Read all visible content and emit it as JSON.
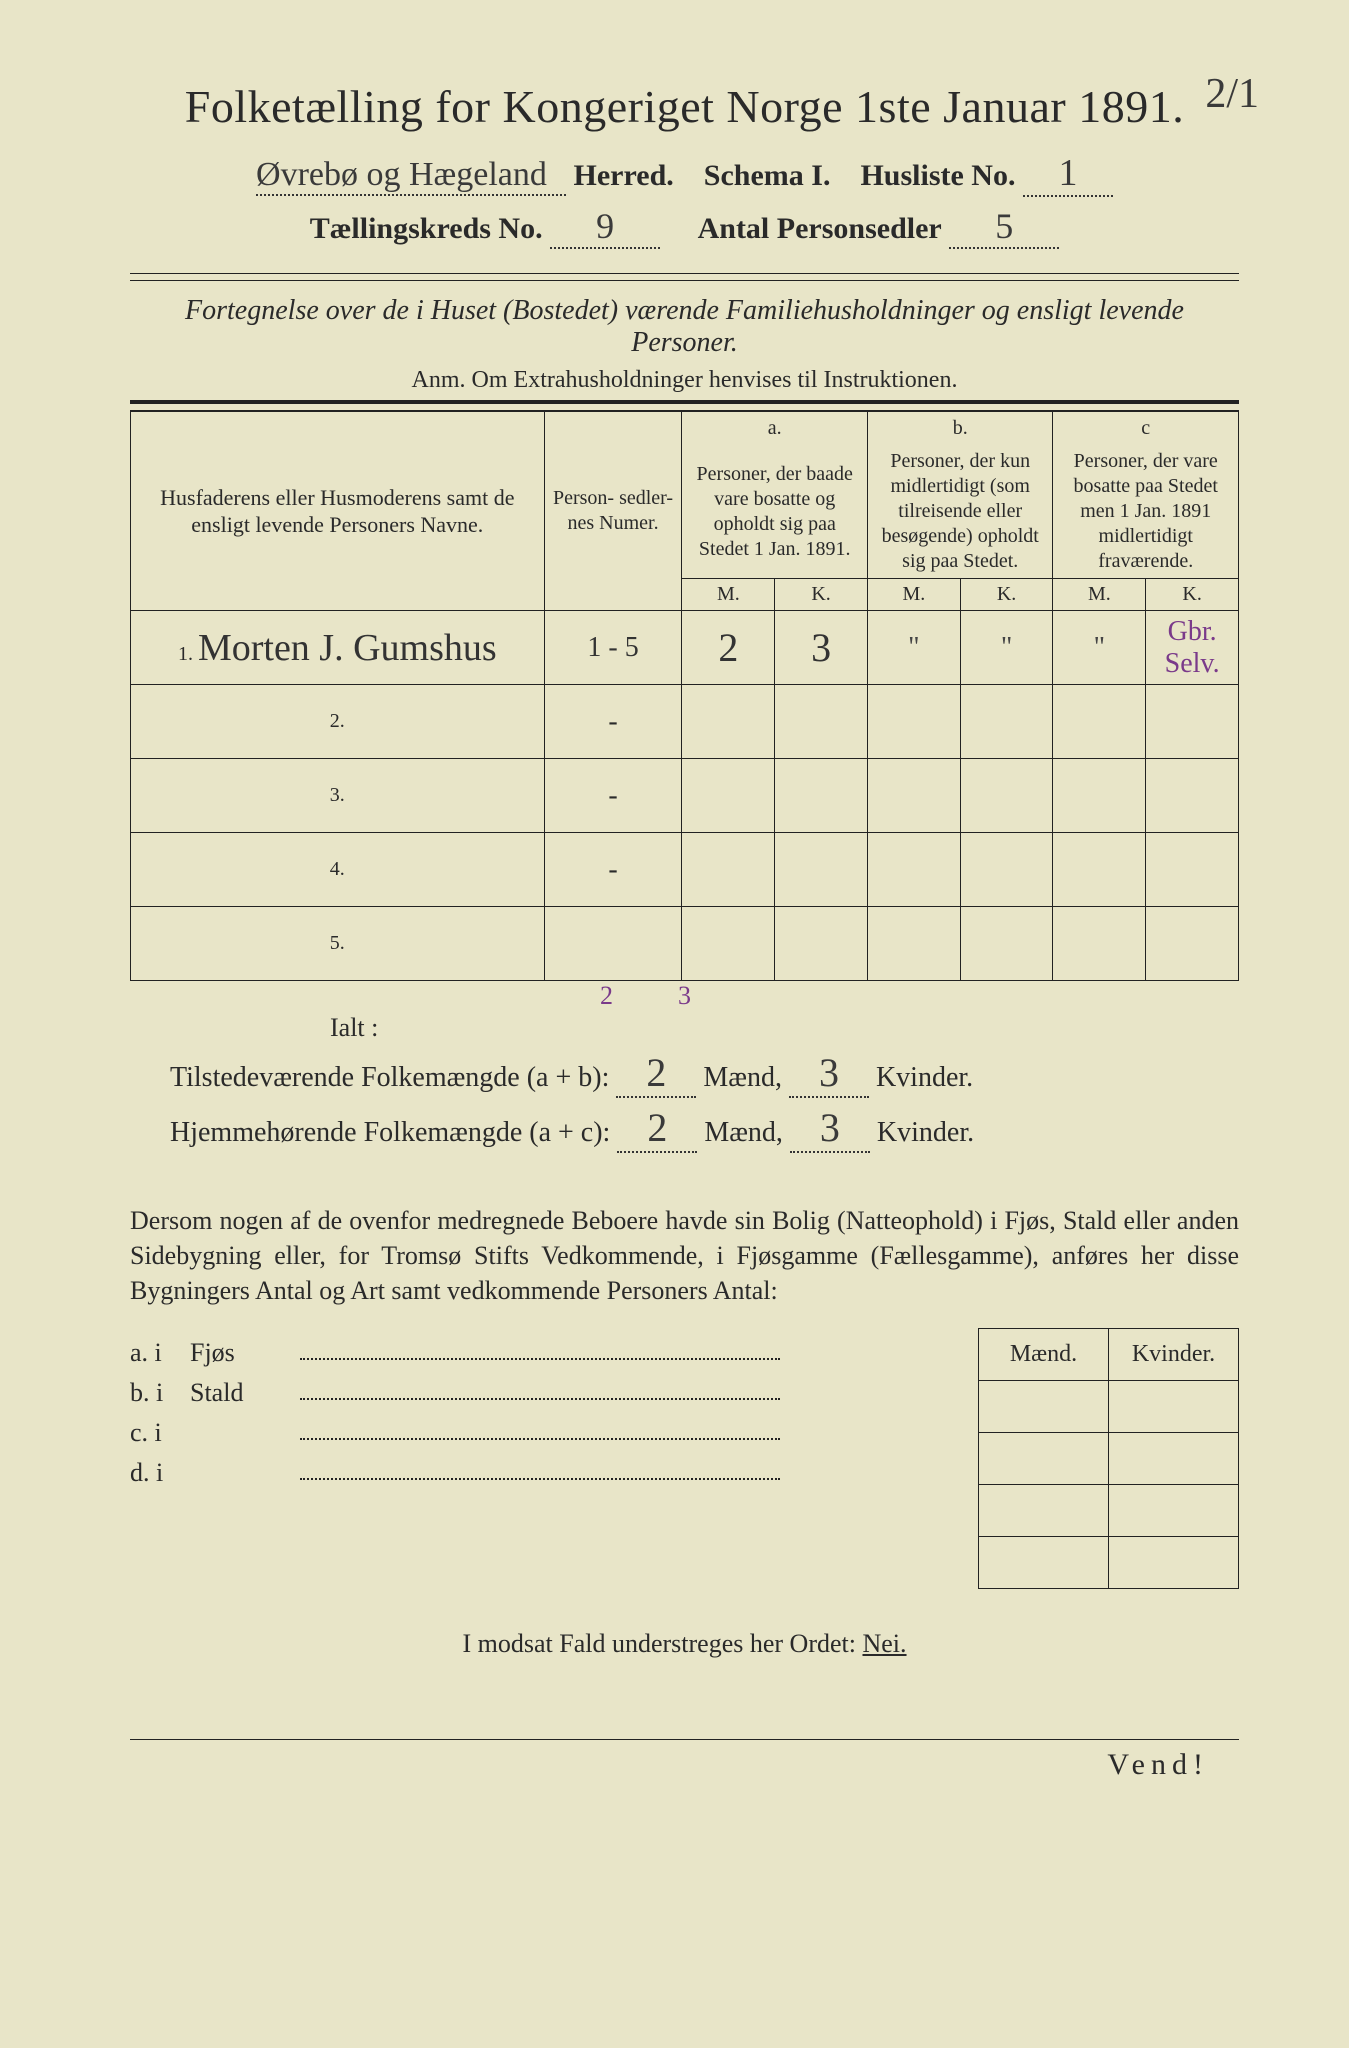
{
  "page_corner": "2/1",
  "title": "Folketælling for Kongeriget Norge 1ste Januar 1891.",
  "herred_written": "Øvrebø og Hægeland",
  "herred_label": "Herred.",
  "schema_label": "Schema I.",
  "husliste_label": "Husliste No.",
  "husliste_no": "1",
  "kreds_label": "Tællingskreds No.",
  "kreds_no": "9",
  "antal_label": "Antal Personsedler",
  "antal_val": "5",
  "subtitle": "Fortegnelse over de i Huset (Bostedet) værende Familiehusholdninger og ensligt levende Personer.",
  "anm": "Anm. Om Extrahusholdninger henvises til Instruktionen.",
  "col_name": "Husfaderens eller Husmoderens samt de ensligt levende Personers Navne.",
  "col_num": "Person-\nsedler-\nnes\nNumer.",
  "col_a_top": "a.",
  "col_a": "Personer, der baade vare bosatte og opholdt sig paa Stedet 1 Jan. 1891.",
  "col_b_top": "b.",
  "col_b": "Personer, der kun midlertidigt (som tilreisende eller besøgende) opholdt sig paa Stedet.",
  "col_c_top": "c",
  "col_c": "Personer, der vare bosatte paa Stedet men 1 Jan. 1891 midlertidigt fraværende.",
  "mk_m": "M.",
  "mk_k": "K.",
  "rows": [
    {
      "n": "1.",
      "name": "Morten J. Gumshus",
      "num": "1 - 5",
      "aM": "2",
      "aK": "3",
      "bM": "\"",
      "bK": "\"",
      "cM": "\"",
      "cK": "Gbr. Selv."
    },
    {
      "n": "2.",
      "name": "",
      "num": "-",
      "aM": "",
      "aK": "",
      "bM": "",
      "bK": "",
      "cM": "",
      "cK": ""
    },
    {
      "n": "3.",
      "name": "",
      "num": "-",
      "aM": "",
      "aK": "",
      "bM": "",
      "bK": "",
      "cM": "",
      "cK": ""
    },
    {
      "n": "4.",
      "name": "",
      "num": "-",
      "aM": "",
      "aK": "",
      "bM": "",
      "bK": "",
      "cM": "",
      "cK": ""
    },
    {
      "n": "5.",
      "name": "",
      "num": "",
      "aM": "",
      "aK": "",
      "bM": "",
      "bK": "",
      "cM": "",
      "cK": ""
    }
  ],
  "col_sum_m": "2",
  "col_sum_k": "3",
  "ialt": "Ialt :",
  "tot1_label": "Tilstedeværende Folkemængde (a + b):",
  "tot2_label": "Hjemmehørende Folkemængde (a + c):",
  "maend": "Mænd,",
  "kvinder": "Kvinder.",
  "tot1_m": "2",
  "tot1_k": "3",
  "tot2_m": "2",
  "tot2_k": "3",
  "para": "Dersom nogen af de ovenfor medregnede Beboere havde sin Bolig (Natteophold) i Fjøs, Stald eller anden Sidebygning eller, for Tromsø Stifts Vedkommende, i Fjøsgamme (Fællesgamme), anføres her disse Bygningers Antal og Art samt vedkommende Personers Antal:",
  "bld_head_m": "Mænd.",
  "bld_head_k": "Kvinder.",
  "bld_rows": [
    {
      "lab": "a.  i",
      "type": "Fjøs"
    },
    {
      "lab": "b.  i",
      "type": "Stald"
    },
    {
      "lab": "c.  i",
      "type": ""
    },
    {
      "lab": "d.  i",
      "type": ""
    }
  ],
  "nei_line": "I modsat Fald understreges her Ordet:",
  "nei": "Nei.",
  "vend": "Vend!",
  "colors": {
    "bg": "#e8e5c8",
    "ink": "#2a2a2a",
    "purple": "#7a3a8a"
  }
}
